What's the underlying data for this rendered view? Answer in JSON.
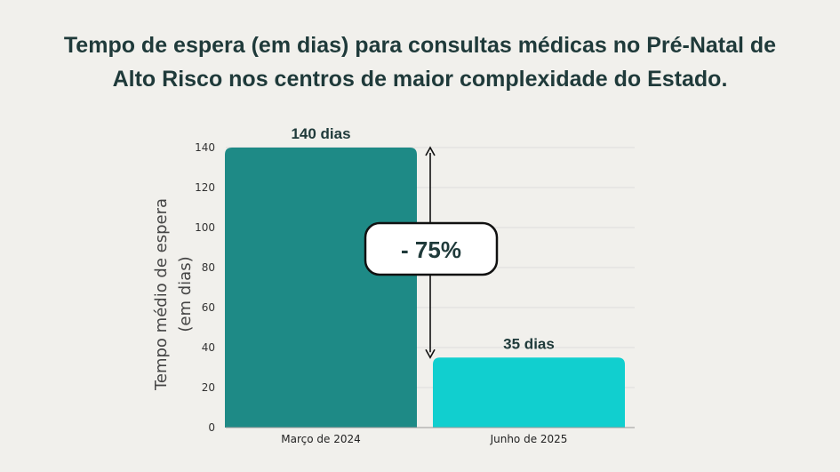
{
  "title_lines": [
    "Tempo de espera (em dias) para consultas médicas no Pré-Natal de",
    "Alto Risco nos centros de maior complexidade do Estado."
  ],
  "chart_data": {
    "type": "bar",
    "title": "Tempo de espera (em dias) para consultas médicas no Pré-Natal de Alto Risco nos centros de maior complexidade do Estado.",
    "categories": [
      "Março de 2024",
      "Junho de 2025"
    ],
    "values": [
      140,
      35
    ],
    "data_labels": [
      "140 dias",
      "35 dias"
    ],
    "ylabel_lines": [
      "Tempo médio de espera",
      "(em dias)"
    ],
    "xlabel": "",
    "ylim": [
      0,
      140
    ],
    "yticks": [
      0,
      20,
      40,
      60,
      80,
      100,
      120,
      140
    ],
    "grid": true,
    "bar_colors": [
      "#1e8a86",
      "#11cfcf"
    ],
    "annotation": {
      "text": "- 75%",
      "from_value": 140,
      "to_value": 35
    }
  },
  "colors": {
    "background": "#f1f0ec",
    "title": "#1f3a3a",
    "grid": "#dddddd"
  }
}
